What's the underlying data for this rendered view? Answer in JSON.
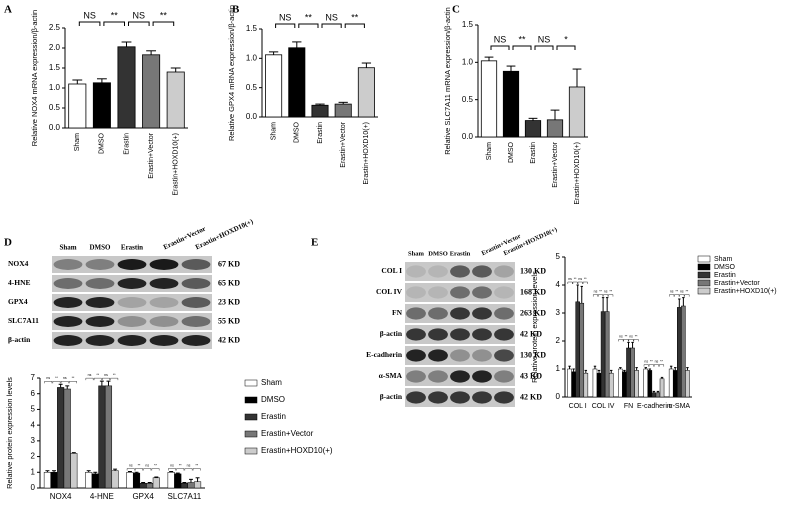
{
  "chart_data": [
    {
      "type": "bar",
      "panel": "A",
      "ylabel": "Relative NOX4 mRNA expression/β-actin",
      "categories": [
        "Sham",
        "DMSO",
        "Erastin",
        "Erastin+Vector",
        "Erastin+HOXD10(+)"
      ],
      "values": [
        1.1,
        1.13,
        2.03,
        1.83,
        1.4
      ],
      "errors": [
        0.1,
        0.1,
        0.12,
        0.1,
        0.1
      ],
      "colors": [
        "#ffffff",
        "#000000",
        "#333333",
        "#777777",
        "#cccccc"
      ],
      "ylim": [
        0,
        2.5
      ],
      "yticks": [
        {
          "value": 0,
          "label": "0.0"
        },
        0.5,
        {
          "value": 1,
          "label": "1.0"
        },
        1.5,
        {
          "value": 2,
          "label": "2.0"
        },
        2.5
      ],
      "significance": [
        "NS",
        "**",
        "NS",
        "**"
      ]
    },
    {
      "type": "bar",
      "panel": "B",
      "ylabel": "Relative GPX4 mRNA expression/β-actin",
      "categories": [
        "Sham",
        "DMSO",
        "Erastin",
        "Erastin+Vector",
        "Erastin+HOXD10(+)"
      ],
      "values": [
        1.06,
        1.18,
        0.2,
        0.22,
        0.84
      ],
      "errors": [
        0.05,
        0.1,
        0.02,
        0.03,
        0.08
      ],
      "colors": [
        "#ffffff",
        "#000000",
        "#333333",
        "#777777",
        "#cccccc"
      ],
      "ylim": [
        0,
        1.5
      ],
      "yticks": [
        {
          "value": 0,
          "label": "0.0"
        },
        0.5,
        {
          "value": 1,
          "label": "1.0"
        },
        1.5
      ],
      "significance": [
        "NS",
        "**",
        "NS",
        "**"
      ]
    },
    {
      "type": "bar",
      "panel": "C",
      "ylabel": "Relative SLC7A11 mRNA expression/β-actin",
      "categories": [
        "Sham",
        "DMSO",
        "Erastin",
        "Erastin+Vector",
        "Erastin+HOXD10(+)"
      ],
      "values": [
        1.02,
        0.88,
        0.22,
        0.23,
        0.67
      ],
      "errors": [
        0.05,
        0.07,
        0.03,
        0.13,
        0.24
      ],
      "colors": [
        "#ffffff",
        "#000000",
        "#333333",
        "#777777",
        "#cccccc"
      ],
      "ylim": [
        0,
        1.5
      ],
      "yticks": [
        {
          "value": 0,
          "label": "0.0"
        },
        0.5,
        {
          "value": 1,
          "label": "1.0"
        },
        1.5
      ],
      "significance": [
        "NS",
        "**",
        "NS",
        "*"
      ]
    },
    {
      "type": "grouped_bar",
      "ylabel": "Relative protein expression levels",
      "legend": "right",
      "categories": [
        "NOX4",
        "4-HNE",
        "GPX4",
        "SLC7A11"
      ],
      "series": [
        {
          "name": "Sham",
          "color": "#ffffff",
          "values": [
            1,
            1,
            1,
            1
          ],
          "errors": [
            0.1,
            0.1,
            0.05,
            0.05
          ]
        },
        {
          "name": "DMSO",
          "color": "#000000",
          "values": [
            1,
            0.9,
            0.95,
            0.9
          ],
          "errors": [
            0.1,
            0.1,
            0.05,
            0.05
          ]
        },
        {
          "name": "Erastin",
          "color": "#333333",
          "values": [
            6.4,
            6.5,
            0.3,
            0.3
          ],
          "errors": [
            0.2,
            0.3,
            0.05,
            0.05
          ]
        },
        {
          "name": "Erastin+Vector",
          "color": "#777777",
          "values": [
            6.3,
            6.5,
            0.3,
            0.35
          ],
          "errors": [
            0.2,
            0.3,
            0.05,
            0.2
          ]
        },
        {
          "name": "Erastin+HOXD10(+)",
          "color": "#cccccc",
          "values": [
            2.2,
            1.1,
            0.65,
            0.4
          ],
          "errors": [
            0.05,
            0.1,
            0.05,
            0.25
          ]
        }
      ],
      "ylim": [
        0,
        7
      ],
      "yticks": [
        0,
        1,
        2,
        3,
        4,
        5,
        6,
        7
      ],
      "significance": [
        [
          "ns",
          "**",
          "ns",
          "**"
        ],
        [
          "ns",
          "**",
          "ns",
          "**"
        ],
        [
          "ns",
          "**",
          "ns",
          "**"
        ],
        [
          "ns",
          "**",
          "ns",
          "**"
        ]
      ]
    },
    {
      "type": "grouped_bar",
      "ylabel": "Relative protein expression levels",
      "legend": "right",
      "categories": [
        "COL I",
        "COL IV",
        "FN",
        "E-cadherin",
        "α-SMA"
      ],
      "series": [
        {
          "name": "Sham",
          "color": "#ffffff",
          "values": [
            1,
            1,
            1,
            1,
            1
          ],
          "errors": [
            0.1,
            0.1,
            0.05,
            0.05,
            0.1
          ]
        },
        {
          "name": "DMSO",
          "color": "#000000",
          "values": [
            0.9,
            0.85,
            0.9,
            0.95,
            0.95
          ],
          "errors": [
            0.1,
            0.1,
            0.05,
            0.05,
            0.1
          ]
        },
        {
          "name": "Erastin",
          "color": "#333333",
          "values": [
            3.4,
            3.05,
            1.75,
            0.15,
            3.2
          ],
          "errors": [
            0.6,
            0.5,
            0.2,
            0.05,
            0.3
          ]
        },
        {
          "name": "Erastin+Vector",
          "color": "#777777",
          "values": [
            3.35,
            3.05,
            1.75,
            0.15,
            3.25
          ],
          "errors": [
            0.6,
            0.5,
            0.2,
            0.05,
            0.3
          ]
        },
        {
          "name": "Erastin+HOXD10(+)",
          "color": "#cccccc",
          "values": [
            0.85,
            0.85,
            0.95,
            0.65,
            0.95
          ],
          "errors": [
            0.1,
            0.1,
            0.1,
            0.05,
            0.1
          ]
        }
      ],
      "ylim": [
        0,
        5
      ],
      "yticks": [
        0,
        1,
        2,
        3,
        4,
        5
      ],
      "significance": [
        [
          "ns",
          "**",
          "ns",
          "**"
        ],
        [
          "ns",
          "**",
          "ns",
          "**"
        ],
        [
          "ns",
          "**",
          "ns",
          "**"
        ],
        [
          "ns",
          "**",
          "ns",
          "**"
        ],
        [
          "ns",
          "**",
          "ns",
          "**"
        ]
      ]
    }
  ],
  "blots": [
    {
      "panel": "D",
      "lanes": [
        "Sham",
        "DMSO",
        "Erastin",
        "Erastin+Vector",
        "Erastin+HOXD10(+)"
      ],
      "rows": [
        {
          "label": "NOX4",
          "size": "67 KD"
        },
        {
          "label": "4-HNE",
          "size": "65 KD"
        },
        {
          "label": "GPX4",
          "size": "23 KD"
        },
        {
          "label": "SLC7A11",
          "size": "55 KD"
        },
        {
          "label": "β-actin",
          "size": "42 KD"
        }
      ]
    },
    {
      "panel": "E",
      "lanes": [
        "Sham",
        "DMSO",
        "Erastin",
        "Erastin+Vector",
        "Erastin+HOXD10(+)"
      ],
      "rows": [
        {
          "label": "COL I",
          "size": "130 KD"
        },
        {
          "label": "COL IV",
          "size": "168 KD"
        },
        {
          "label": "FN",
          "size": "263 KD"
        },
        {
          "label": "β-actin",
          "size": "42 KD"
        },
        {
          "label": "E-cadherin",
          "size": "130 KD"
        },
        {
          "label": "α-SMA",
          "size": "43 KD"
        },
        {
          "label": "β-actin",
          "size": "42 KD"
        }
      ]
    }
  ]
}
